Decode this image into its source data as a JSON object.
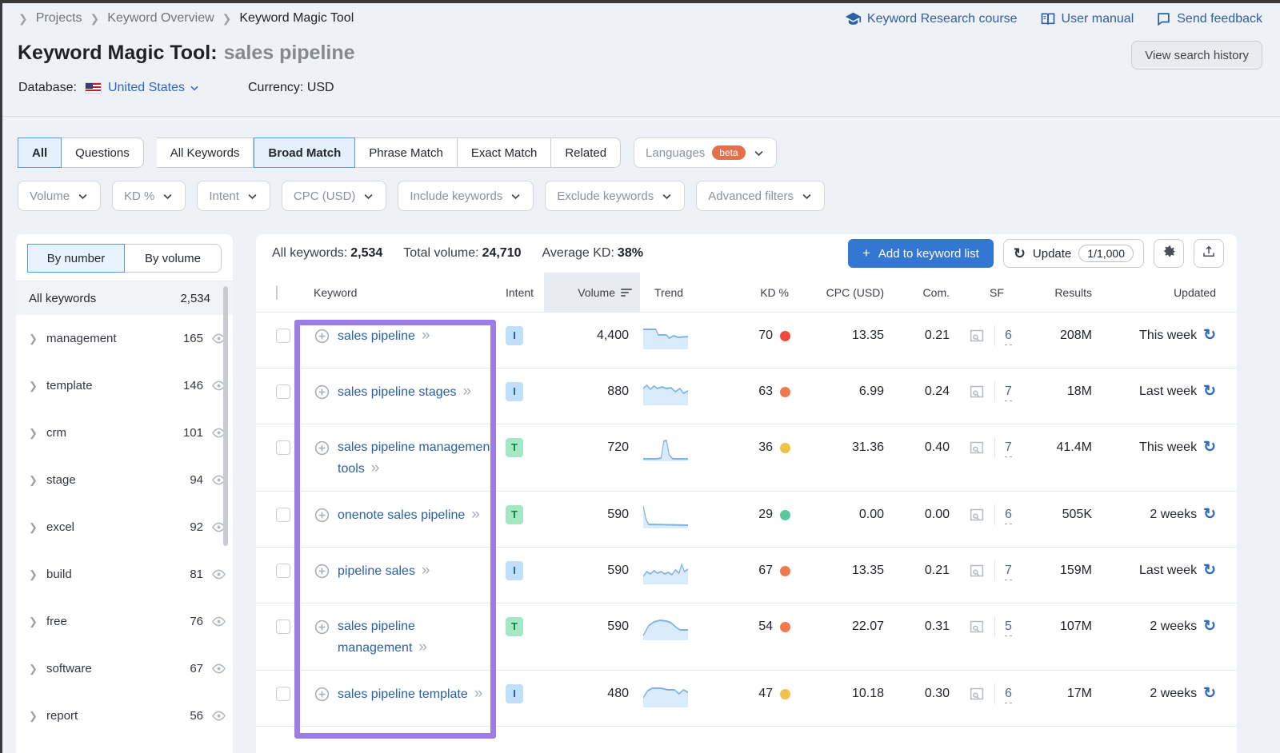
{
  "breadcrumb": {
    "items": [
      "Projects",
      "Keyword Overview",
      "Keyword Magic Tool"
    ]
  },
  "header": {
    "title": "Keyword Magic Tool:",
    "query": "sales pipeline",
    "database_label": "Database:",
    "database_value": "United States",
    "currency_label": "Currency:",
    "currency_value": "USD",
    "links": [
      {
        "label": "Keyword Research course",
        "icon": "graduation-cap-icon"
      },
      {
        "label": "User manual",
        "icon": "book-icon"
      },
      {
        "label": "Send feedback",
        "icon": "chat-bubble-icon"
      }
    ],
    "view_history_label": "View search history"
  },
  "match_tabs": {
    "group1": [
      {
        "label": "All",
        "selected": true
      },
      {
        "label": "Questions",
        "selected": false
      }
    ],
    "group2": [
      {
        "label": "All Keywords",
        "selected": false
      },
      {
        "label": "Broad Match",
        "selected": true
      },
      {
        "label": "Phrase Match",
        "selected": false
      },
      {
        "label": "Exact Match",
        "selected": false
      },
      {
        "label": "Related",
        "selected": false
      }
    ],
    "languages": {
      "label": "Languages",
      "badge": "beta"
    }
  },
  "filters": [
    {
      "label": "Volume"
    },
    {
      "label": "KD %"
    },
    {
      "label": "Intent"
    },
    {
      "label": "CPC (USD)"
    },
    {
      "label": "Include keywords"
    },
    {
      "label": "Exclude keywords"
    },
    {
      "label": "Advanced filters"
    }
  ],
  "sidebar": {
    "toggle": [
      {
        "label": "By number",
        "selected": true
      },
      {
        "label": "By volume",
        "selected": false
      }
    ],
    "all_row": {
      "label": "All keywords",
      "count": "2,534"
    },
    "groups": [
      {
        "name": "management",
        "count": "165"
      },
      {
        "name": "template",
        "count": "146"
      },
      {
        "name": "crm",
        "count": "101"
      },
      {
        "name": "stage",
        "count": "94"
      },
      {
        "name": "excel",
        "count": "92"
      },
      {
        "name": "build",
        "count": "81"
      },
      {
        "name": "free",
        "count": "76"
      },
      {
        "name": "software",
        "count": "67"
      },
      {
        "name": "report",
        "count": "56"
      }
    ]
  },
  "stats": {
    "all_keywords_label": "All keywords:",
    "all_keywords": "2,534",
    "total_volume_label": "Total volume:",
    "total_volume": "24,710",
    "avg_kd_label": "Average KD:",
    "avg_kd": "38%"
  },
  "actions": {
    "add_plus": "+",
    "add_label": "Add to keyword list",
    "update_label": "Update",
    "update_count": "1/1,000"
  },
  "table": {
    "columns": {
      "keyword": "Keyword",
      "intent": "Intent",
      "volume": "Volume",
      "trend": "Trend",
      "kd": "KD %",
      "cpc": "CPC (USD)",
      "com": "Com.",
      "sf": "SF",
      "results": "Results",
      "updated": "Updated"
    },
    "rows": [
      {
        "keyword": "sales pipeline",
        "intent": "I",
        "volume": "4,400",
        "kd": "70",
        "kd_color": "#ee4b3a",
        "cpc": "13.35",
        "com": "0.21",
        "sf": "6",
        "results": "208M",
        "updated": "This week",
        "trend": [
          [
            0,
            5
          ],
          [
            28,
            5
          ],
          [
            34,
            12
          ],
          [
            52,
            12
          ],
          [
            58,
            16
          ],
          [
            68,
            13
          ],
          [
            78,
            15
          ],
          [
            100,
            14
          ]
        ]
      },
      {
        "keyword": "sales pipeline stages",
        "intent": "I",
        "volume": "880",
        "kd": "63",
        "kd_color": "#f0784a",
        "cpc": "6.99",
        "com": "0.24",
        "sf": "7",
        "results": "18M",
        "updated": "Last week",
        "trend": [
          [
            0,
            9
          ],
          [
            8,
            5
          ],
          [
            16,
            10
          ],
          [
            24,
            6
          ],
          [
            32,
            9
          ],
          [
            42,
            7
          ],
          [
            52,
            9
          ],
          [
            62,
            8
          ],
          [
            72,
            13
          ],
          [
            82,
            9
          ],
          [
            90,
            15
          ],
          [
            100,
            12
          ]
        ]
      },
      {
        "keyword": "sales pipeline management tools",
        "intent": "T",
        "volume": "720",
        "kd": "36",
        "kd_color": "#f2c14a",
        "cpc": "31.36",
        "com": "0.40",
        "sf": "7",
        "results": "41.4M",
        "updated": "This week",
        "trend": [
          [
            0,
            27
          ],
          [
            30,
            27
          ],
          [
            40,
            26
          ],
          [
            46,
            5
          ],
          [
            52,
            4
          ],
          [
            58,
            22
          ],
          [
            66,
            27
          ],
          [
            100,
            27
          ]
        ]
      },
      {
        "keyword": "onenote sales pipeline",
        "intent": "T",
        "volume": "590",
        "kd": "29",
        "kd_color": "#57c99b",
        "cpc": "0.00",
        "com": "0.00",
        "sf": "6",
        "results": "505K",
        "updated": "2 weeks",
        "trend": [
          [
            0,
            2
          ],
          [
            6,
            18
          ],
          [
            12,
            25
          ],
          [
            100,
            26
          ]
        ]
      },
      {
        "keyword": "pipeline sales",
        "intent": "I",
        "volume": "590",
        "kd": "67",
        "kd_color": "#f0784a",
        "cpc": "13.35",
        "com": "0.21",
        "sf": "7",
        "results": "159M",
        "updated": "Last week",
        "trend": [
          [
            0,
            20
          ],
          [
            8,
            14
          ],
          [
            16,
            17
          ],
          [
            24,
            13
          ],
          [
            32,
            16
          ],
          [
            40,
            14
          ],
          [
            48,
            17
          ],
          [
            56,
            15
          ],
          [
            64,
            18
          ],
          [
            72,
            12
          ],
          [
            80,
            16
          ],
          [
            86,
            5
          ],
          [
            92,
            14
          ],
          [
            100,
            11
          ]
        ]
      },
      {
        "keyword": "sales pipeline management",
        "intent": "T",
        "volume": "590",
        "kd": "54",
        "kd_color": "#f0784a",
        "cpc": "22.07",
        "com": "0.31",
        "sf": "5",
        "results": "107M",
        "updated": "2 weeks",
        "trend": [
          [
            0,
            24
          ],
          [
            12,
            12
          ],
          [
            24,
            7
          ],
          [
            38,
            5
          ],
          [
            52,
            6
          ],
          [
            62,
            8
          ],
          [
            72,
            13
          ],
          [
            82,
            17
          ],
          [
            100,
            17
          ]
        ]
      },
      {
        "keyword": "sales pipeline template",
        "intent": "I",
        "volume": "480",
        "kd": "47",
        "kd_color": "#f2c14a",
        "cpc": "10.18",
        "com": "0.30",
        "sf": "6",
        "results": "17M",
        "updated": "2 weeks",
        "trend": [
          [
            0,
            18
          ],
          [
            10,
            9
          ],
          [
            20,
            6
          ],
          [
            40,
            6
          ],
          [
            55,
            8
          ],
          [
            70,
            8
          ],
          [
            80,
            13
          ],
          [
            90,
            8
          ],
          [
            100,
            11
          ]
        ]
      }
    ]
  },
  "colors": {
    "accent_blue": "#3477d2",
    "link_blue": "#2a5fa5",
    "purple_highlight": "#9d7ce8",
    "intent_informational_bg": "#bfe0f8",
    "intent_informational_fg": "#22619e",
    "intent_transactional_bg": "#a5e7c3",
    "intent_transactional_fg": "#17804b",
    "kd_red": "#ee4b3a",
    "kd_orange": "#f0784a",
    "kd_yellow": "#f2c14a",
    "kd_green": "#57c99b",
    "trend_line": "#7fb3e3",
    "trend_fill": "#d9eafa",
    "beta_badge": "#e0714b"
  }
}
